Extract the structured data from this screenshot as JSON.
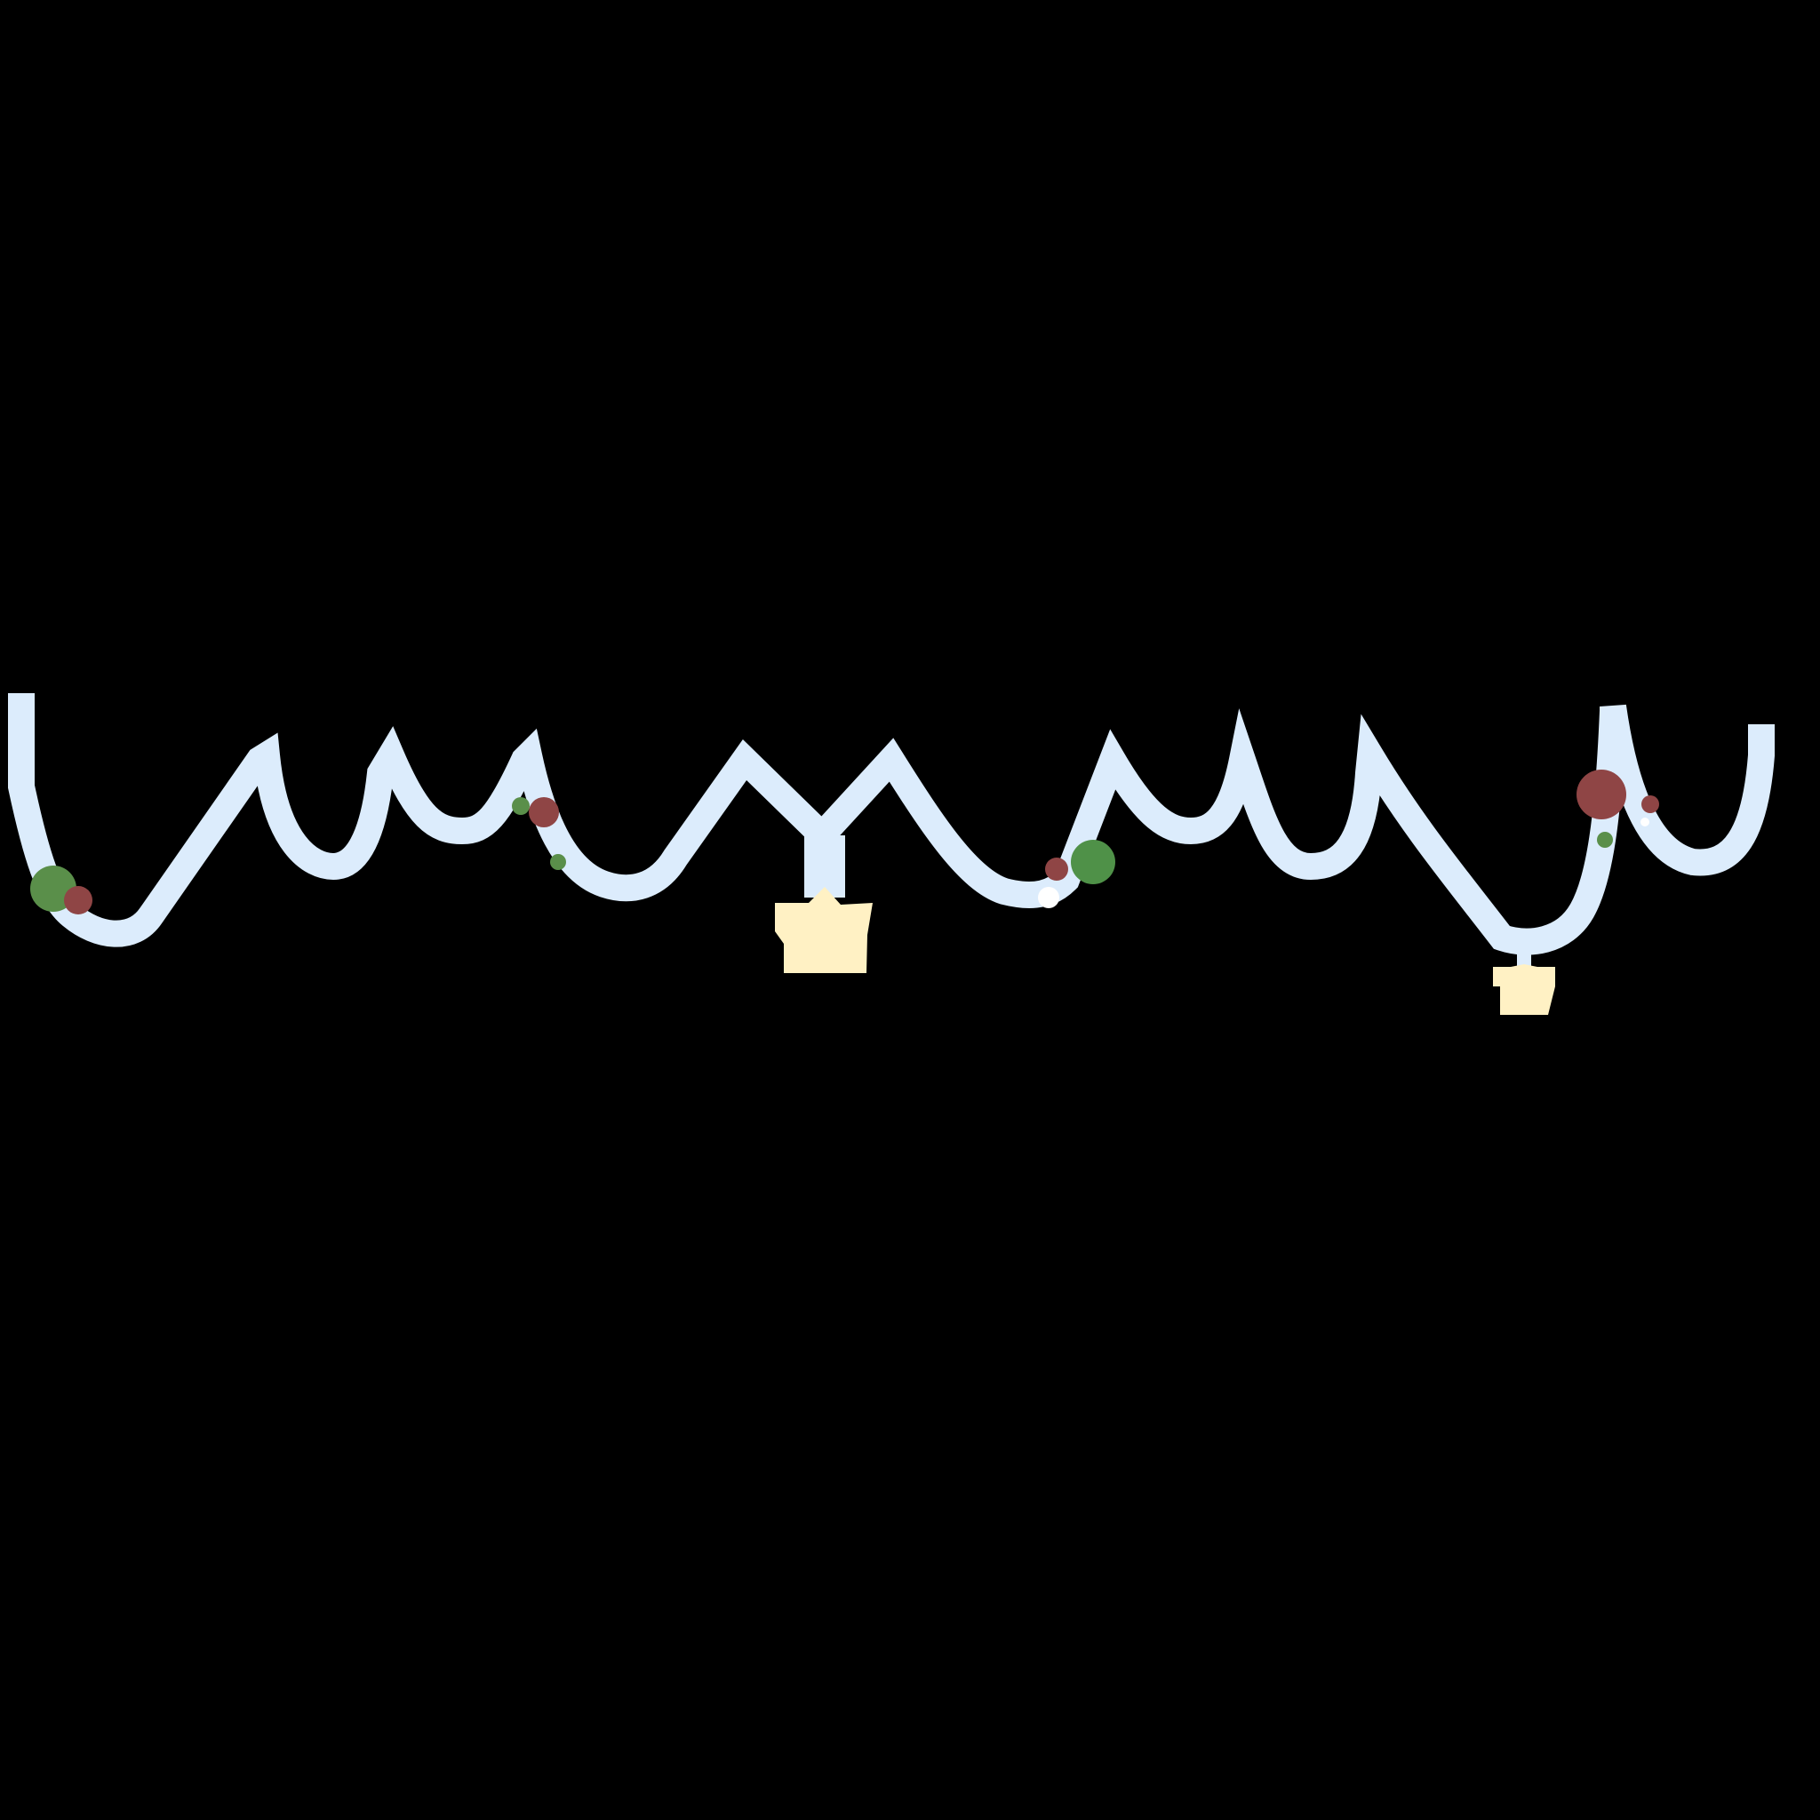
{
  "colors": {
    "background": "#000000",
    "garland": "#dcecfc",
    "star": "#fff1c4",
    "berry_red": "#8f4545",
    "leaf_green": "#5a8f4a",
    "bright_green": "#4f9148",
    "snow_white": "#ffffff"
  },
  "icons": {
    "garland": "wavy-garland-icon",
    "star_large": "star-ornament-icon",
    "star_small": "star-ornament-icon",
    "berry": "berry-icon",
    "leaf_dot": "green-ornament-icon",
    "snow_dot": "snowflake-dot-icon"
  }
}
